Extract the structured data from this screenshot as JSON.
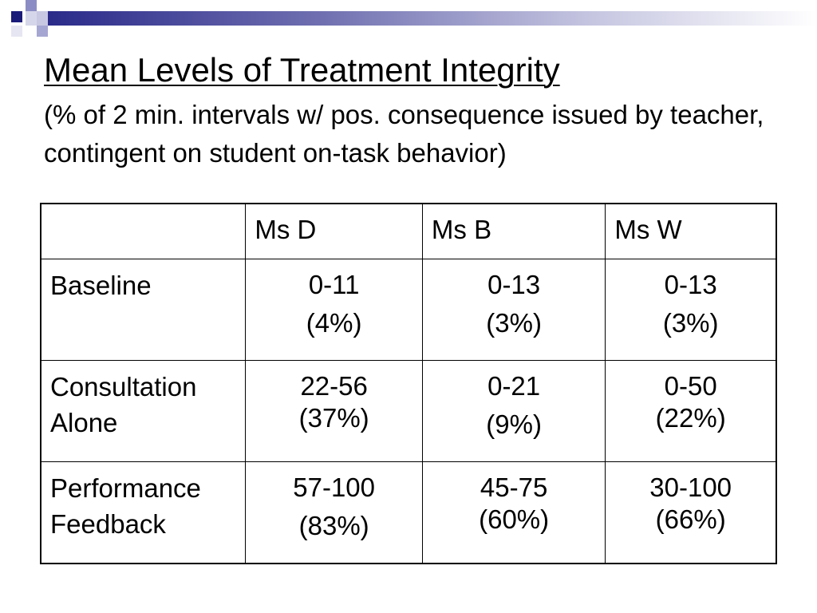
{
  "title": "Mean Levels of Treatment Integrity",
  "subtitle": "(% of 2 min. intervals w/ pos. consequence issued by teacher, contingent on student on-task behavior)",
  "table": {
    "headers": [
      "",
      "Ms D",
      "Ms B",
      "Ms W"
    ],
    "rows": [
      {
        "label": [
          "Baseline"
        ],
        "cells": [
          {
            "range": "0-11",
            "pct": "(4%)"
          },
          {
            "range": "0-13",
            "pct": "(3%)"
          },
          {
            "range": "0-13",
            "pct": "(3%)"
          }
        ]
      },
      {
        "label": [
          "Consultation",
          "Alone"
        ],
        "cells": [
          {
            "range": "22-56",
            "pct": "(37%)"
          },
          {
            "range": "0-21",
            "pct": "(9%)"
          },
          {
            "range": "0-50",
            "pct": "(22%)"
          }
        ]
      },
      {
        "label": [
          "Performance",
          "Feedback"
        ],
        "cells": [
          {
            "range": "57-100",
            "pct": "(83%)"
          },
          {
            "range": "45-75",
            "pct": "(60%)"
          },
          {
            "range": "30-100",
            "pct": "(66%)"
          }
        ]
      }
    ]
  },
  "colors": {
    "accent_dark": "#1b1b7a",
    "accent_light": "#c4c4e0",
    "text": "#000000",
    "background": "#ffffff"
  }
}
